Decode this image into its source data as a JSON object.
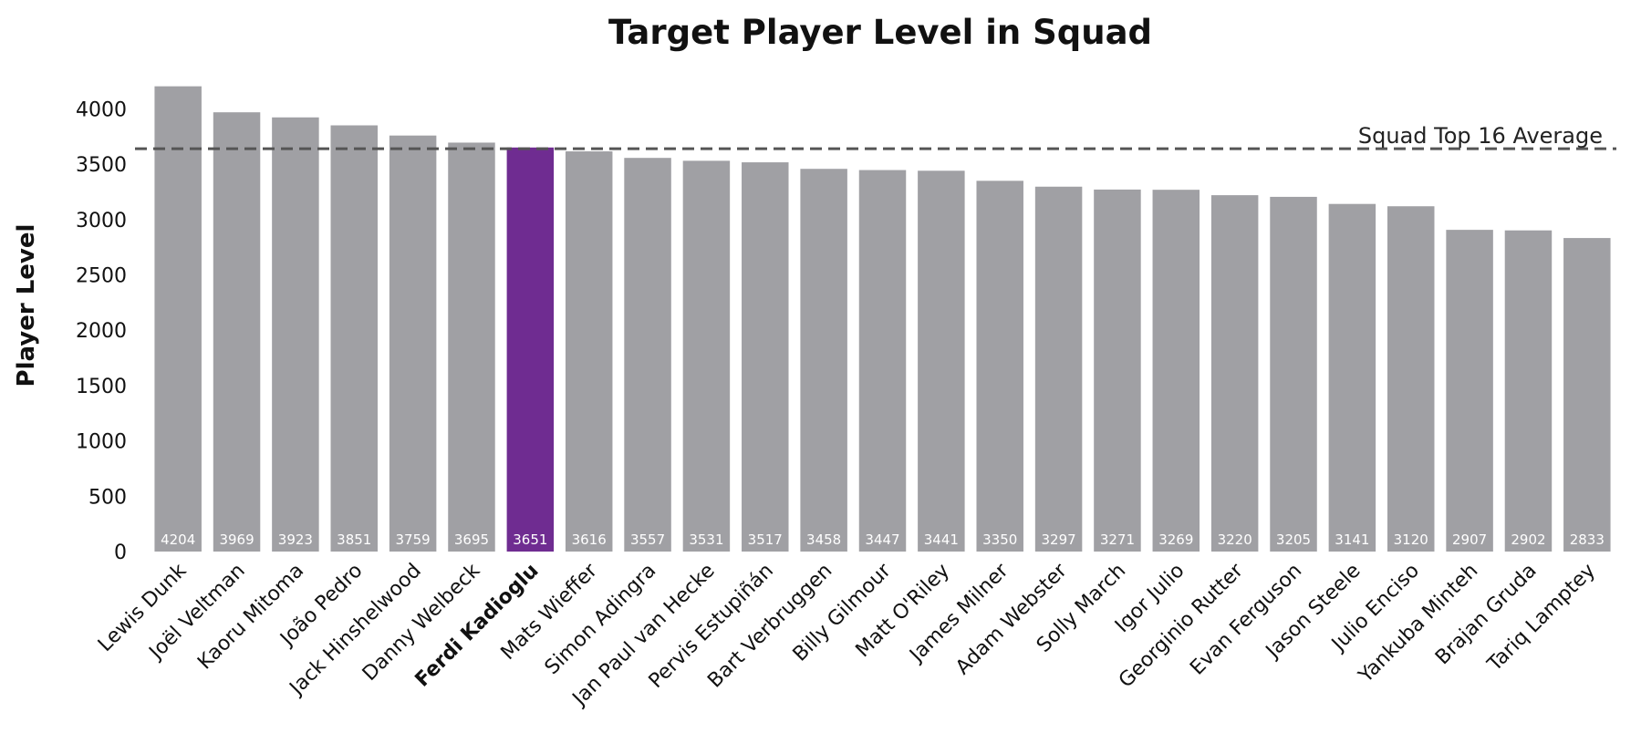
{
  "chart_data": {
    "type": "bar",
    "title": "Target Player Level in Squad",
    "xlabel": "",
    "ylabel": "Player Level",
    "ylim": [
      0,
      4300
    ],
    "yticks": [
      0,
      500,
      1000,
      1500,
      2000,
      2500,
      3000,
      3500,
      4000
    ],
    "categories": [
      "Lewis Dunk",
      "Joël Veltman",
      "Kaoru Mitoma",
      "João Pedro",
      "Jack Hinshelwood",
      "Danny Welbeck",
      "Ferdi Kadioglu",
      "Mats Wieffer",
      "Simon Adingra",
      "Jan Paul van Hecke",
      "Pervis Estupiñán",
      "Bart Verbruggen",
      "Billy Gilmour",
      "Matt O'Riley",
      "James Milner",
      "Adam Webster",
      "Solly March",
      "Igor Julio",
      "Georginio Rutter",
      "Evan Ferguson",
      "Jason Steele",
      "Julio Enciso",
      "Yankuba Minteh",
      "Brajan Gruda",
      "Tariq Lamptey"
    ],
    "values": [
      4204,
      3969,
      3923,
      3851,
      3759,
      3695,
      3651,
      3616,
      3557,
      3531,
      3517,
      3458,
      3447,
      3441,
      3350,
      3297,
      3271,
      3269,
      3220,
      3205,
      3141,
      3120,
      2907,
      2902,
      2833
    ],
    "highlight": "Ferdi Kadioglu",
    "reference_line": {
      "label": "Squad Top 16 Average",
      "value": 3640,
      "style": "dashed"
    },
    "grid": false,
    "colors": {
      "bar": "#a0a0a4",
      "highlight": "#6f2c91",
      "reference": "#555555",
      "data_label": "#ffffff"
    }
  }
}
